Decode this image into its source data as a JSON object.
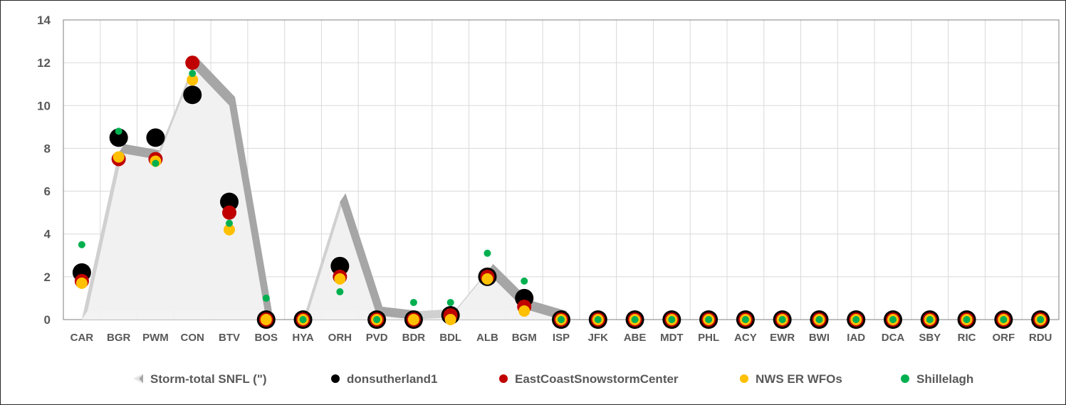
{
  "chart_data": {
    "type": "scatter",
    "title": "",
    "xlabel": "",
    "ylabel": "",
    "ylim": [
      0,
      14
    ],
    "yticks": [
      0,
      2,
      4,
      6,
      8,
      10,
      12,
      14
    ],
    "grid": true,
    "legend_position": "bottom",
    "categories": [
      "CAR",
      "BGR",
      "PWM",
      "CON",
      "BTV",
      "BOS",
      "HYA",
      "ORH",
      "PVD",
      "BDR",
      "BDL",
      "ALB",
      "BGM",
      "ISP",
      "JFK",
      "ABE",
      "MDT",
      "PHL",
      "ACY",
      "EWR",
      "BWI",
      "IAD",
      "DCA",
      "SBY",
      "RIC",
      "ORF",
      "RDU"
    ],
    "series": [
      {
        "name": "Storm-total SNFL (\")",
        "kind": "area-3d",
        "color": "#f2f2f2",
        "edge_color": "#a6a6a6",
        "values": [
          0,
          7.8,
          7.5,
          11.8,
          10.0,
          0,
          0,
          5.5,
          0.2,
          0,
          0.1,
          2.2,
          0.5,
          0,
          0,
          0,
          0,
          0,
          0,
          0,
          0,
          0,
          0,
          0,
          0,
          0,
          0
        ]
      },
      {
        "name": "donsutherland1",
        "kind": "marker",
        "color": "#000000",
        "size": "large",
        "values": [
          2.2,
          8.5,
          8.5,
          10.5,
          5.5,
          0,
          0,
          2.5,
          0,
          0,
          0.2,
          2.0,
          1.0,
          0,
          0,
          0,
          0,
          0,
          0,
          0,
          0,
          0,
          0,
          0,
          0,
          0,
          0
        ]
      },
      {
        "name": "EastCoastSnowstormCenter",
        "kind": "marker",
        "color": "#c00000",
        "size": "medium",
        "values": [
          1.8,
          7.5,
          7.5,
          12.0,
          5.0,
          0,
          0,
          2.0,
          0,
          0,
          0.2,
          2.0,
          0.6,
          0,
          0,
          0,
          0,
          0,
          0,
          0,
          0,
          0,
          0,
          0,
          0,
          0,
          0
        ]
      },
      {
        "name": "NWS ER WFOs",
        "kind": "marker",
        "color": "#ffc000",
        "size": "small",
        "values": [
          1.7,
          7.6,
          7.4,
          11.2,
          4.2,
          0,
          0,
          1.9,
          0,
          0,
          0,
          1.9,
          0.4,
          0,
          0,
          0,
          0,
          0,
          0,
          0,
          0,
          0,
          0,
          0,
          0,
          0,
          0
        ]
      },
      {
        "name": "Shillelagh",
        "kind": "marker",
        "color": "#00b050",
        "size": "tiny",
        "values": [
          3.5,
          8.8,
          7.3,
          11.5,
          4.5,
          1.0,
          0,
          1.3,
          0,
          0.8,
          0.8,
          3.1,
          1.8,
          0,
          0,
          0,
          0,
          0,
          0,
          0,
          0,
          0,
          0,
          0,
          0,
          0,
          0
        ]
      }
    ]
  }
}
